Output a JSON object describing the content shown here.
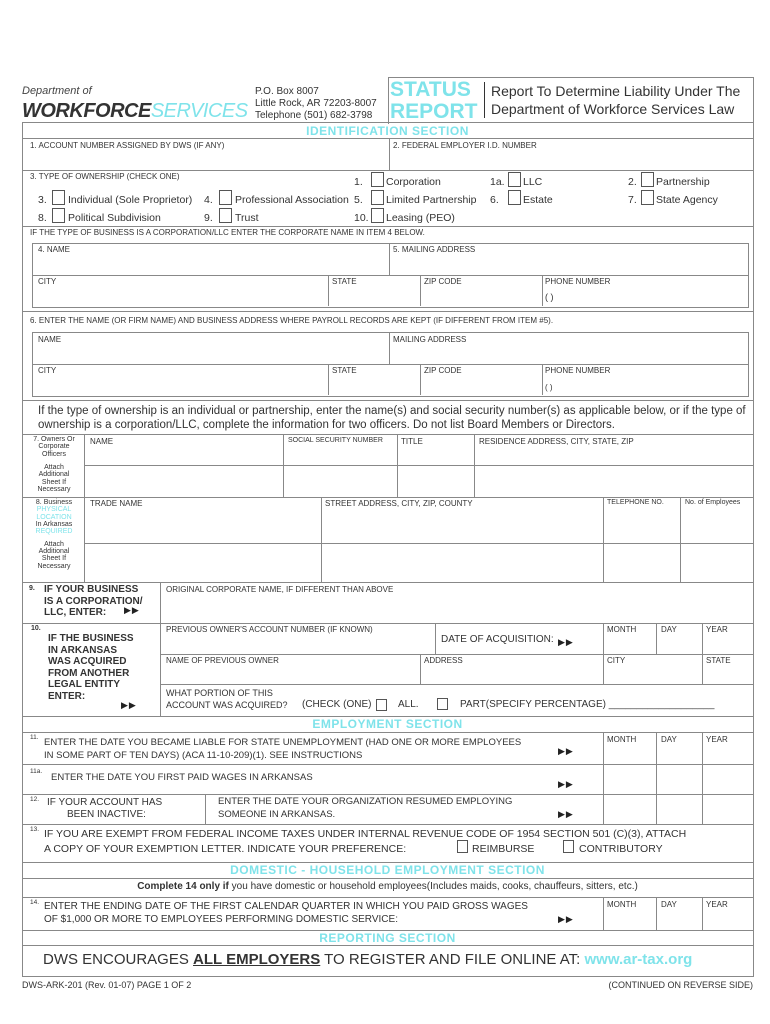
{
  "header": {
    "dept_of": "Department of",
    "workforce": "WORKFORCE",
    "services": "SERVICES",
    "po_box": "P.O. Box 8007",
    "city": "Little Rock, AR 72203-8007",
    "phone": "Telephone (501) 682-3798",
    "status": "STATUS",
    "report": "REPORT",
    "title_line1": "Report To Determine Liability Under The",
    "title_line2": "Department of Workforce Services Law"
  },
  "sections": {
    "identification": "IDENTIFICATION SECTION",
    "employment": "EMPLOYMENT SECTION",
    "domestic": "DOMESTIC - HOUSEHOLD EMPLOYMENT SECTION",
    "reporting": "REPORTING SECTION"
  },
  "ident": {
    "account": "1. ACCOUNT NUMBER ASSIGNED BY DWS (IF ANY)",
    "fein": "2. FEDERAL EMPLOYER I.D. NUMBER",
    "ownership": "3. TYPE OF OWNERSHIP (CHECK ONE)",
    "options": [
      {
        "num": "1.",
        "label": "Corporation"
      },
      {
        "num": "1a.",
        "label": "LLC"
      },
      {
        "num": "2.",
        "label": "Partnership"
      },
      {
        "num": "3.",
        "label": "Individual (Sole Proprietor)"
      },
      {
        "num": "4.",
        "label": "Professional Association"
      },
      {
        "num": "5.",
        "label": "Limited Partnership"
      },
      {
        "num": "6.",
        "label": "Estate"
      },
      {
        "num": "7.",
        "label": "State Agency"
      },
      {
        "num": "8.",
        "label": "Political Subdivision"
      },
      {
        "num": "9.",
        "label": "Trust"
      },
      {
        "num": "10.",
        "label": "Leasing (PEO)"
      }
    ],
    "corp_note": "IF THE TYPE OF BUSINESS IS A CORPORATION/LLC ENTER THE CORPORATE NAME IN ITEM 4 BELOW.",
    "name": "4. NAME",
    "mailing": "5. MAILING ADDRESS",
    "city": "CITY",
    "state": "STATE",
    "zip": "ZIP CODE",
    "phone": "PHONE NUMBER",
    "phone_paren": "(          )",
    "payroll_note": "6. ENTER THE NAME (OR FIRM NAME) AND BUSINESS ADDRESS WHERE PAYROLL RECORDS ARE KEPT (IF DIFFERENT FROM ITEM #5).",
    "name2": "NAME",
    "mailing2": "MAILING ADDRESS"
  },
  "owners": {
    "instructions_1": "If the type of ownership is an individual or partnership, enter the name(s) and social security number(s) as applicable below, or if the type of",
    "instructions_2": "ownership is a corporation/LLC, complete the information for two officers.    Do not list Board Members or Directors.",
    "label_1": "7. Owners Or",
    "label_2": "Corporate",
    "label_3": "Officers",
    "attach": [
      "Attach",
      "Additional",
      "Sheet If",
      "Necessary"
    ],
    "cols": [
      "NAME",
      "SOCIAL SECURITY NUMBER",
      "TITLE",
      "RESIDENCE ADDRESS, CITY, STATE, ZIP"
    ]
  },
  "business": {
    "label": [
      "8. Business",
      "PHYSICAL",
      "LOCATION",
      "In Arkansas",
      "REQUIRED"
    ],
    "cols": [
      "TRADE NAME",
      "STREET ADDRESS, CITY, ZIP, COUNTY",
      "TELEPHONE NO.",
      "No. of Employees"
    ]
  },
  "item9": {
    "num": "9.",
    "lines": [
      "IF YOUR BUSINESS",
      "IS A CORPORATION/",
      "LLC, ENTER:"
    ],
    "field": "ORIGINAL CORPORATE NAME, IF DIFFERENT THAN ABOVE"
  },
  "item10": {
    "num": "10.",
    "lines": [
      "IF THE BUSINESS",
      "IN ARKANSAS",
      "WAS ACQUIRED",
      "FROM ANOTHER",
      "LEGAL ENTITY",
      "ENTER:"
    ],
    "prev_account": "PREVIOUS OWNER'S ACCOUNT NUMBER  (IF KNOWN)",
    "date_acq": "DATE OF ACQUISITION:",
    "month": "MONTH",
    "day": "DAY",
    "year": "YEAR",
    "prev_name": "NAME OF PREVIOUS OWNER",
    "address": "ADDRESS",
    "city": "CITY",
    "state": "STATE",
    "portion_1": "WHAT PORTION OF THIS",
    "portion_2": "ACCOUNT WAS ACQUIRED?",
    "check_one": "(CHECK (ONE)",
    "all": "ALL.",
    "part": "PART(SPECIFY PERCENTAGE) ___________________"
  },
  "employment": {
    "i11_num": "11.",
    "i11_1": "ENTER THE DATE YOU BECAME LIABLE FOR STATE UNEMPLOYMENT (HAD ONE OR MORE EMPLOYEES",
    "i11_2": "IN SOME PART OF TEN DAYS) (ACA 11-10-209)(1).   SEE INSTRUCTIONS",
    "i11a_num": "11a.",
    "i11a": "ENTER THE DATE YOU FIRST PAID WAGES IN ARKANSAS",
    "i12_num": "12.",
    "i12_1": "IF YOUR ACCOUNT HAS",
    "i12_2": "BEEN INACTIVE:",
    "i12_3": "ENTER THE DATE YOUR ORGANIZATION RESUMED EMPLOYING",
    "i12_4": "SOMEONE IN ARKANSAS.",
    "i13_num": "13.",
    "i13_1": "IF YOU ARE EXEMPT FROM FEDERAL INCOME TAXES UNDER INTERNAL REVENUE CODE OF 1954 SECTION 501 (C)(3),  ATTACH",
    "i13_2": "A COPY OF YOUR EXEMPTION LETTER.   INDICATE YOUR PREFERENCE:",
    "reimburse": "REIMBURSE",
    "contributory": "CONTRIBUTORY",
    "month": "MONTH",
    "day": "DAY",
    "year": "YEAR"
  },
  "domestic": {
    "note_bold": "Complete 14 only if",
    "note_rest": " you have domestic or household employees(Includes maids, cooks, chauffeurs, sitters, etc.)",
    "i14_num": "14.",
    "i14_1": "ENTER THE ENDING DATE OF THE FIRST CALENDAR QUARTER IN WHICH YOU PAID GROSS WAGES",
    "i14_2": "OF $1,000 OR MORE TO EMPLOYEES PERFORMING DOMESTIC SERVICE:",
    "month": "MONTH",
    "day": "DAY",
    "year": "YEAR"
  },
  "reporting": {
    "pre": "DWS ENCOURAGES ",
    "bold": "ALL EMPLOYERS",
    "post": " TO REGISTER AND FILE ONLINE AT:  ",
    "url": "www.ar-tax.org"
  },
  "footer": {
    "form_id": "DWS-ARK-201 (Rev. 01-07) PAGE 1 OF 2",
    "continued": "(CONTINUED ON REVERSE SIDE)"
  },
  "arrow": "▶▶",
  "colors": {
    "accent": "#7fe3ea",
    "lines": "#888888"
  }
}
